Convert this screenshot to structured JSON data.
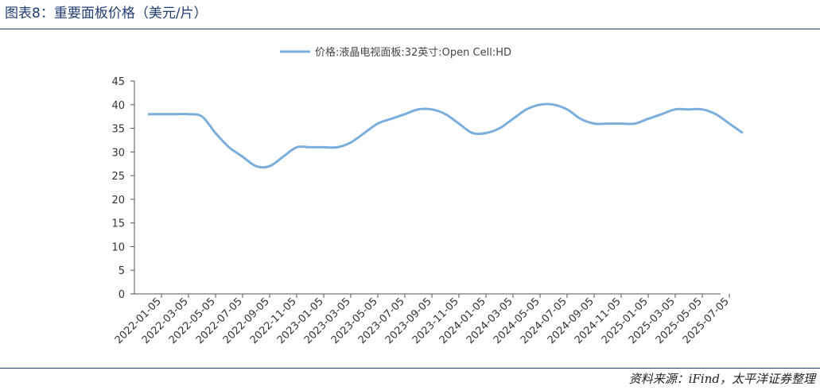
{
  "header": {
    "title": "图表8：重要面板价格（美元/片）"
  },
  "footer": {
    "source": "资料来源：iFind，太平洋证券整理"
  },
  "colors": {
    "series": "#7aaedc",
    "axis": "#555555",
    "rule": "#1f3d73"
  },
  "chart_data": {
    "type": "line",
    "title": "",
    "xlabel": "",
    "ylabel": "",
    "ylim": [
      0,
      45
    ],
    "yticks": [
      0,
      5,
      10,
      15,
      20,
      25,
      30,
      35,
      40,
      45
    ],
    "grid": false,
    "legend_position": "top-center",
    "xtick_labels": [
      "2022-01-05",
      "2022-03-05",
      "2022-05-05",
      "2022-07-05",
      "2022-09-05",
      "2022-11-05",
      "2023-01-05",
      "2023-03-05",
      "2023-05-05",
      "2023-07-05",
      "2023-09-05",
      "2023-11-05",
      "2024-01-05",
      "2024-03-05",
      "2024-05-05",
      "2024-07-05",
      "2024-09-05",
      "2024-11-05",
      "2025-01-05",
      "2025-03-05",
      "2025-05-05",
      "2025-07-05"
    ],
    "series": [
      {
        "name": "价格:液晶电视面板:32英寸:Open Cell:HD",
        "x": [
          "2021-12",
          "2022-01",
          "2022-02",
          "2022-03",
          "2022-04",
          "2022-05",
          "2022-06",
          "2022-07",
          "2022-08",
          "2022-09",
          "2022-10",
          "2022-11",
          "2022-12",
          "2023-01",
          "2023-02",
          "2023-03",
          "2023-04",
          "2023-05",
          "2023-06",
          "2023-07",
          "2023-08",
          "2023-09",
          "2023-10",
          "2023-11",
          "2023-12",
          "2024-01",
          "2024-02",
          "2024-03",
          "2024-04",
          "2024-05",
          "2024-06",
          "2024-07",
          "2024-08",
          "2024-09",
          "2024-10",
          "2024-11",
          "2024-12",
          "2025-01",
          "2025-02",
          "2025-03",
          "2025-04",
          "2025-05",
          "2025-06",
          "2025-07",
          "2025-08"
        ],
        "values": [
          38,
          38,
          38,
          38,
          37.5,
          34,
          31,
          29,
          27,
          27,
          29,
          31,
          31,
          31,
          31,
          32,
          34,
          36,
          37,
          38,
          39,
          39,
          38,
          36,
          34,
          34,
          35,
          37,
          39,
          40,
          40,
          39,
          37,
          36,
          36,
          36,
          36,
          37,
          38,
          39,
          39,
          39,
          38,
          36,
          34
        ]
      }
    ]
  }
}
